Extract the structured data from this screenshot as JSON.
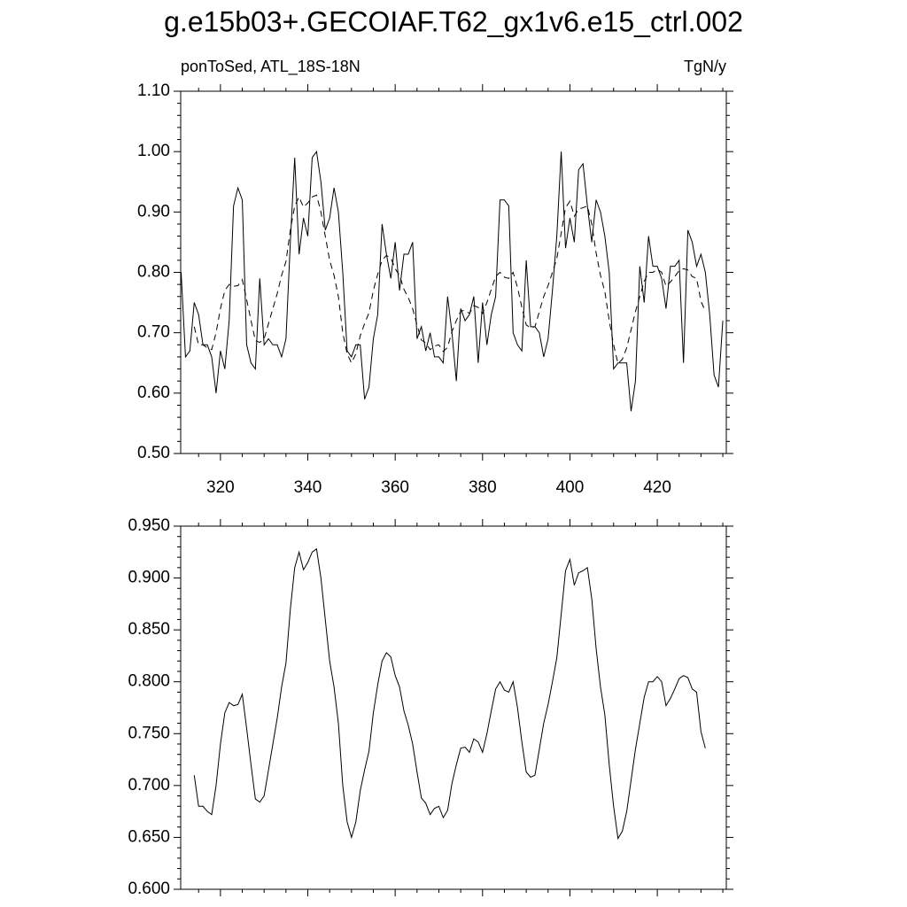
{
  "chart_data": [
    {
      "type": "line",
      "title": "g.e15b03+.GECOIAF.T62_gx1v6.e15_ctrl.002",
      "subtitle_left": "ponToSed, ATL_18S-18N",
      "subtitle_right": "TgN/y",
      "xlim": [
        310.9,
        435.8
      ],
      "xticks": [
        320,
        340,
        360,
        380,
        400,
        420
      ],
      "ylim": [
        0.5,
        1.1
      ],
      "yticks": [
        {
          "value": 0.5,
          "label": "0.50"
        },
        {
          "value": 0.6,
          "label": "0.60"
        },
        {
          "value": 0.7,
          "label": "0.70"
        },
        {
          "value": 0.8,
          "label": "0.80"
        },
        {
          "value": 0.9,
          "label": "0.90"
        },
        {
          "value": 1.0,
          "label": "1.00"
        },
        {
          "value": 1.1,
          "label": "1.10"
        }
      ],
      "series": [
        {
          "color": "#000000",
          "line_style": "solid",
          "x": [
            311,
            312,
            313,
            314,
            315,
            316,
            317,
            318,
            319,
            320,
            321,
            322,
            323,
            324,
            325,
            326,
            327,
            328,
            329,
            330,
            331,
            332,
            333,
            334,
            335,
            336,
            337,
            338,
            339,
            340,
            341,
            342,
            343,
            344,
            345,
            346,
            347,
            348,
            349,
            350,
            351,
            352,
            353,
            354,
            355,
            356,
            357,
            358,
            359,
            360,
            361,
            362,
            363,
            364,
            365,
            366,
            367,
            368,
            369,
            370,
            371,
            372,
            373,
            374,
            375,
            376,
            377,
            378,
            379,
            380,
            381,
            382,
            383,
            384,
            385,
            386,
            387,
            388,
            389,
            390,
            391,
            392,
            393,
            394,
            395,
            396,
            397,
            398,
            399,
            400,
            401,
            402,
            403,
            404,
            405,
            406,
            407,
            408,
            409,
            410,
            411,
            412,
            413,
            414,
            415,
            416,
            417,
            418,
            419,
            420,
            421,
            422,
            423,
            424,
            425,
            426,
            427,
            428,
            429,
            430,
            431,
            432,
            433,
            434,
            435
          ],
          "values": [
            0.8,
            0.66,
            0.67,
            0.75,
            0.73,
            0.68,
            0.68,
            0.66,
            0.6,
            0.67,
            0.64,
            0.72,
            0.91,
            0.94,
            0.92,
            0.68,
            0.65,
            0.64,
            0.79,
            0.68,
            0.69,
            0.68,
            0.68,
            0.66,
            0.69,
            0.85,
            0.99,
            0.83,
            0.89,
            0.86,
            0.99,
            1.0,
            0.95,
            0.87,
            0.89,
            0.94,
            0.9,
            0.8,
            0.67,
            0.66,
            0.68,
            0.68,
            0.59,
            0.61,
            0.69,
            0.73,
            0.88,
            0.83,
            0.79,
            0.85,
            0.77,
            0.83,
            0.83,
            0.85,
            0.69,
            0.71,
            0.67,
            0.7,
            0.66,
            0.66,
            0.65,
            0.76,
            0.7,
            0.62,
            0.74,
            0.72,
            0.73,
            0.76,
            0.65,
            0.75,
            0.68,
            0.73,
            0.76,
            0.92,
            0.92,
            0.91,
            0.7,
            0.68,
            0.67,
            0.82,
            0.71,
            0.71,
            0.7,
            0.66,
            0.69,
            0.77,
            0.86,
            1.0,
            0.84,
            0.89,
            0.85,
            0.97,
            0.98,
            0.91,
            0.85,
            0.92,
            0.9,
            0.86,
            0.8,
            0.64,
            0.65,
            0.65,
            0.65,
            0.57,
            0.62,
            0.81,
            0.75,
            0.86,
            0.81,
            0.81,
            0.79,
            0.74,
            0.81,
            0.81,
            0.82,
            0.65,
            0.87,
            0.85,
            0.81,
            0.83,
            0.8,
            0.73,
            0.63,
            0.61,
            0.72
          ]
        },
        {
          "color": "#000000",
          "line_style": "dashed",
          "x": [
            314,
            315,
            316,
            317,
            318,
            319,
            320,
            321,
            322,
            323,
            324,
            325,
            326,
            327,
            328,
            329,
            330,
            331,
            332,
            333,
            334,
            335,
            336,
            337,
            338,
            339,
            340,
            341,
            342,
            343,
            344,
            345,
            346,
            347,
            348,
            349,
            350,
            351,
            352,
            353,
            354,
            355,
            356,
            357,
            358,
            359,
            360,
            361,
            362,
            363,
            364,
            365,
            366,
            367,
            368,
            369,
            370,
            371,
            372,
            373,
            374,
            375,
            376,
            377,
            378,
            379,
            380,
            381,
            382,
            383,
            384,
            385,
            386,
            387,
            388,
            389,
            390,
            391,
            392,
            393,
            394,
            395,
            396,
            397,
            398,
            399,
            400,
            401,
            402,
            403,
            404,
            405,
            406,
            407,
            408,
            409,
            410,
            411,
            412,
            413,
            414,
            415,
            416,
            417,
            418,
            419,
            420,
            421,
            422,
            423,
            424,
            425,
            426,
            427,
            428,
            429,
            430,
            431
          ],
          "values": [
            0.71,
            0.68,
            0.68,
            0.675,
            0.672,
            0.7,
            0.74,
            0.77,
            0.78,
            0.777,
            0.778,
            0.788,
            0.755,
            0.72,
            0.687,
            0.684,
            0.69,
            0.715,
            0.74,
            0.765,
            0.795,
            0.818,
            0.87,
            0.91,
            0.925,
            0.908,
            0.915,
            0.925,
            0.928,
            0.9,
            0.86,
            0.82,
            0.795,
            0.76,
            0.7,
            0.665,
            0.65,
            0.665,
            0.695,
            0.715,
            0.733,
            0.77,
            0.797,
            0.82,
            0.828,
            0.824,
            0.806,
            0.795,
            0.772,
            0.758,
            0.74,
            0.713,
            0.688,
            0.683,
            0.672,
            0.678,
            0.68,
            0.669,
            0.676,
            0.702,
            0.72,
            0.736,
            0.737,
            0.732,
            0.745,
            0.742,
            0.732,
            0.75,
            0.772,
            0.793,
            0.8,
            0.792,
            0.79,
            0.8,
            0.775,
            0.742,
            0.713,
            0.708,
            0.71,
            0.735,
            0.76,
            0.778,
            0.8,
            0.823,
            0.865,
            0.907,
            0.918,
            0.893,
            0.905,
            0.907,
            0.91,
            0.88,
            0.832,
            0.795,
            0.768,
            0.72,
            0.68,
            0.649,
            0.656,
            0.675,
            0.705,
            0.735,
            0.76,
            0.785,
            0.8,
            0.8,
            0.805,
            0.8,
            0.777,
            0.784,
            0.793,
            0.803,
            0.806,
            0.804,
            0.793,
            0.79,
            0.752,
            0.736
          ]
        }
      ]
    },
    {
      "type": "line",
      "xlim": [
        310.9,
        435.8
      ],
      "ylim": [
        0.6,
        0.95
      ],
      "yticks": [
        {
          "value": 0.6,
          "label": "0.600"
        },
        {
          "value": 0.65,
          "label": "0.650"
        },
        {
          "value": 0.7,
          "label": "0.700"
        },
        {
          "value": 0.75,
          "label": "0.750"
        },
        {
          "value": 0.8,
          "label": "0.800"
        },
        {
          "value": 0.85,
          "label": "0.850"
        },
        {
          "value": 0.9,
          "label": "0.900"
        },
        {
          "value": 0.95,
          "label": "0.950"
        }
      ],
      "series": [
        {
          "color": "#000000",
          "line_style": "solid",
          "x": [
            314,
            315,
            316,
            317,
            318,
            319,
            320,
            321,
            322,
            323,
            324,
            325,
            326,
            327,
            328,
            329,
            330,
            331,
            332,
            333,
            334,
            335,
            336,
            337,
            338,
            339,
            340,
            341,
            342,
            343,
            344,
            345,
            346,
            347,
            348,
            349,
            350,
            351,
            352,
            353,
            354,
            355,
            356,
            357,
            358,
            359,
            360,
            361,
            362,
            363,
            364,
            365,
            366,
            367,
            368,
            369,
            370,
            371,
            372,
            373,
            374,
            375,
            376,
            377,
            378,
            379,
            380,
            381,
            382,
            383,
            384,
            385,
            386,
            387,
            388,
            389,
            390,
            391,
            392,
            393,
            394,
            395,
            396,
            397,
            398,
            399,
            400,
            401,
            402,
            403,
            404,
            405,
            406,
            407,
            408,
            409,
            410,
            411,
            412,
            413,
            414,
            415,
            416,
            417,
            418,
            419,
            420,
            421,
            422,
            423,
            424,
            425,
            426,
            427,
            428,
            429,
            430,
            431
          ],
          "values": [
            0.71,
            0.68,
            0.68,
            0.675,
            0.672,
            0.7,
            0.74,
            0.77,
            0.78,
            0.777,
            0.778,
            0.788,
            0.755,
            0.72,
            0.687,
            0.684,
            0.69,
            0.715,
            0.74,
            0.765,
            0.795,
            0.818,
            0.87,
            0.91,
            0.925,
            0.908,
            0.915,
            0.925,
            0.928,
            0.9,
            0.86,
            0.82,
            0.795,
            0.76,
            0.7,
            0.665,
            0.65,
            0.665,
            0.695,
            0.715,
            0.733,
            0.77,
            0.797,
            0.82,
            0.828,
            0.824,
            0.806,
            0.795,
            0.772,
            0.758,
            0.74,
            0.713,
            0.688,
            0.683,
            0.672,
            0.678,
            0.68,
            0.669,
            0.676,
            0.702,
            0.72,
            0.736,
            0.737,
            0.732,
            0.745,
            0.742,
            0.732,
            0.75,
            0.772,
            0.793,
            0.8,
            0.792,
            0.79,
            0.8,
            0.775,
            0.742,
            0.713,
            0.708,
            0.71,
            0.735,
            0.76,
            0.778,
            0.8,
            0.823,
            0.865,
            0.907,
            0.918,
            0.893,
            0.905,
            0.907,
            0.91,
            0.88,
            0.832,
            0.795,
            0.768,
            0.72,
            0.68,
            0.649,
            0.656,
            0.675,
            0.705,
            0.735,
            0.76,
            0.785,
            0.8,
            0.8,
            0.805,
            0.8,
            0.777,
            0.784,
            0.793,
            0.803,
            0.806,
            0.804,
            0.793,
            0.79,
            0.752,
            0.736
          ]
        }
      ]
    }
  ]
}
